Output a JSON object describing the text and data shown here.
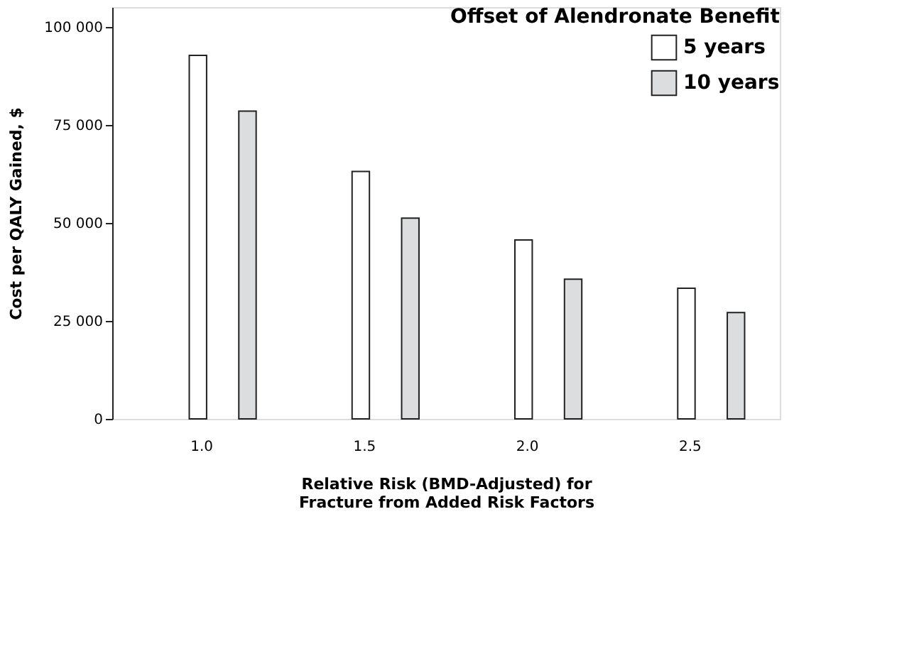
{
  "chart_data": {
    "type": "bar",
    "xlabel": "Relative Risk (BMD-Adjusted) for\nFracture from Added Risk Factors",
    "ylabel": "Cost per QALY Gained, $",
    "legend_title": "Offset of Alendronate Benefit",
    "categories": [
      "1.0",
      "1.5",
      "2.0",
      "2.5"
    ],
    "series": [
      {
        "name": "5 years",
        "color": "#ffffff",
        "values": [
          92700,
          63100,
          45600,
          33300
        ]
      },
      {
        "name": "10 years",
        "color": "#dcdddf",
        "values": [
          78500,
          51200,
          35600,
          27100
        ]
      }
    ],
    "ylim": [
      0,
      105000
    ],
    "yticks": [
      0,
      {
        "value": 25000,
        "label": "25 000"
      },
      {
        "value": 50000,
        "label": "50 000"
      },
      {
        "value": 75000,
        "label": "75 000"
      },
      {
        "value": 100000,
        "label": "100 000"
      }
    ],
    "grid": false,
    "legend": "top right"
  }
}
